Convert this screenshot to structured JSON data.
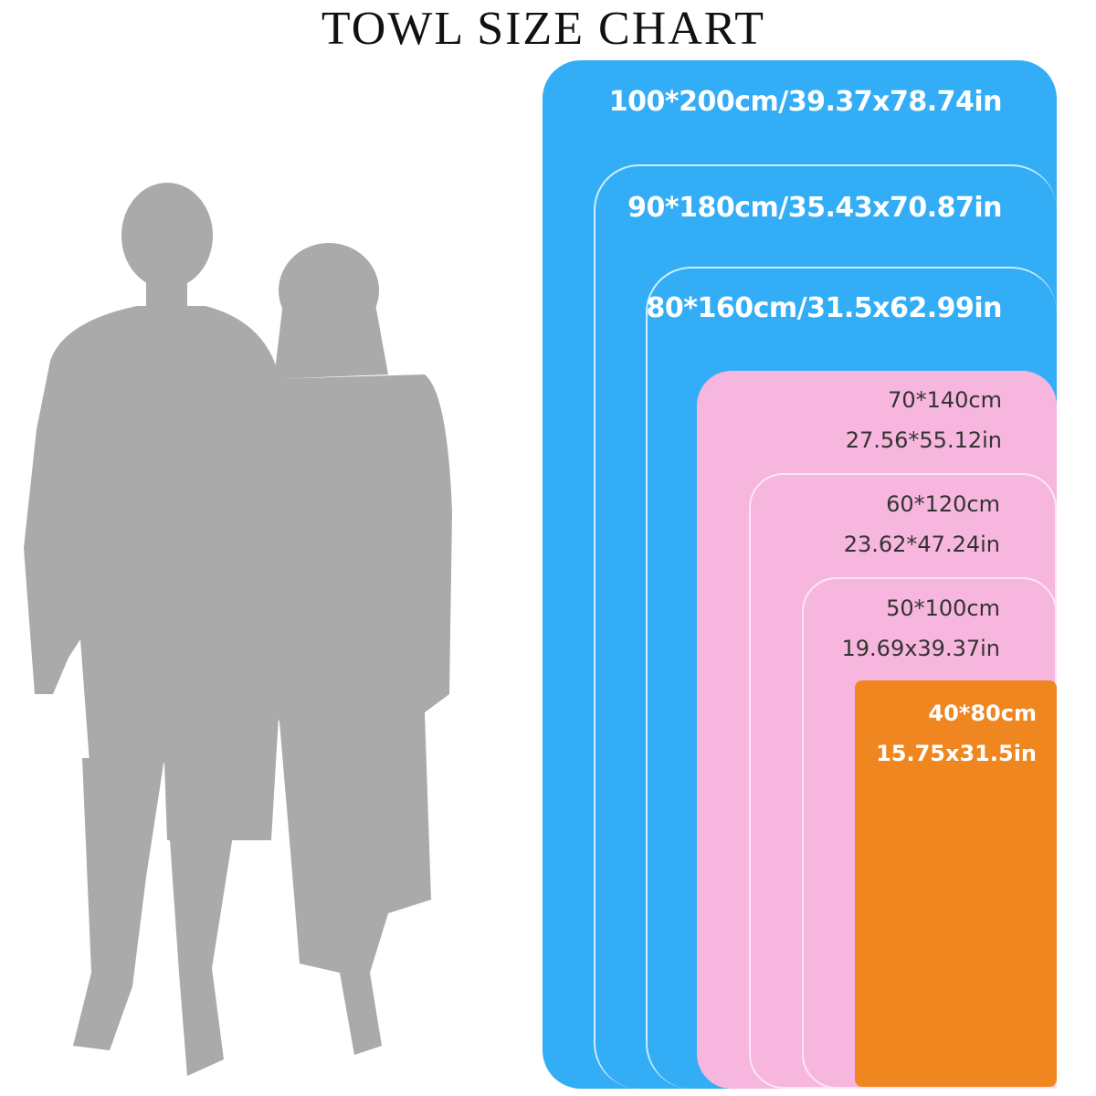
{
  "title": "TOWL SIZE CHART",
  "colors": {
    "blue": "#33aef6",
    "pink": "#f7b6dd",
    "orange": "#ef8620",
    "silhouette": "#aaaaaa"
  },
  "sizes": [
    {
      "cm": "100*200cm/39.37x78.74in",
      "in": ""
    },
    {
      "cm": "90*180cm/35.43x70.87in",
      "in": ""
    },
    {
      "cm": "80*160cm/31.5x62.99in",
      "in": ""
    },
    {
      "cm": "70*140cm",
      "in": "27.56*55.12in"
    },
    {
      "cm": "60*120cm",
      "in": "23.62*47.24in"
    },
    {
      "cm": "50*100cm",
      "in": "19.69x39.37in"
    },
    {
      "cm": "40*80cm",
      "in": "15.75x31.5in"
    }
  ]
}
